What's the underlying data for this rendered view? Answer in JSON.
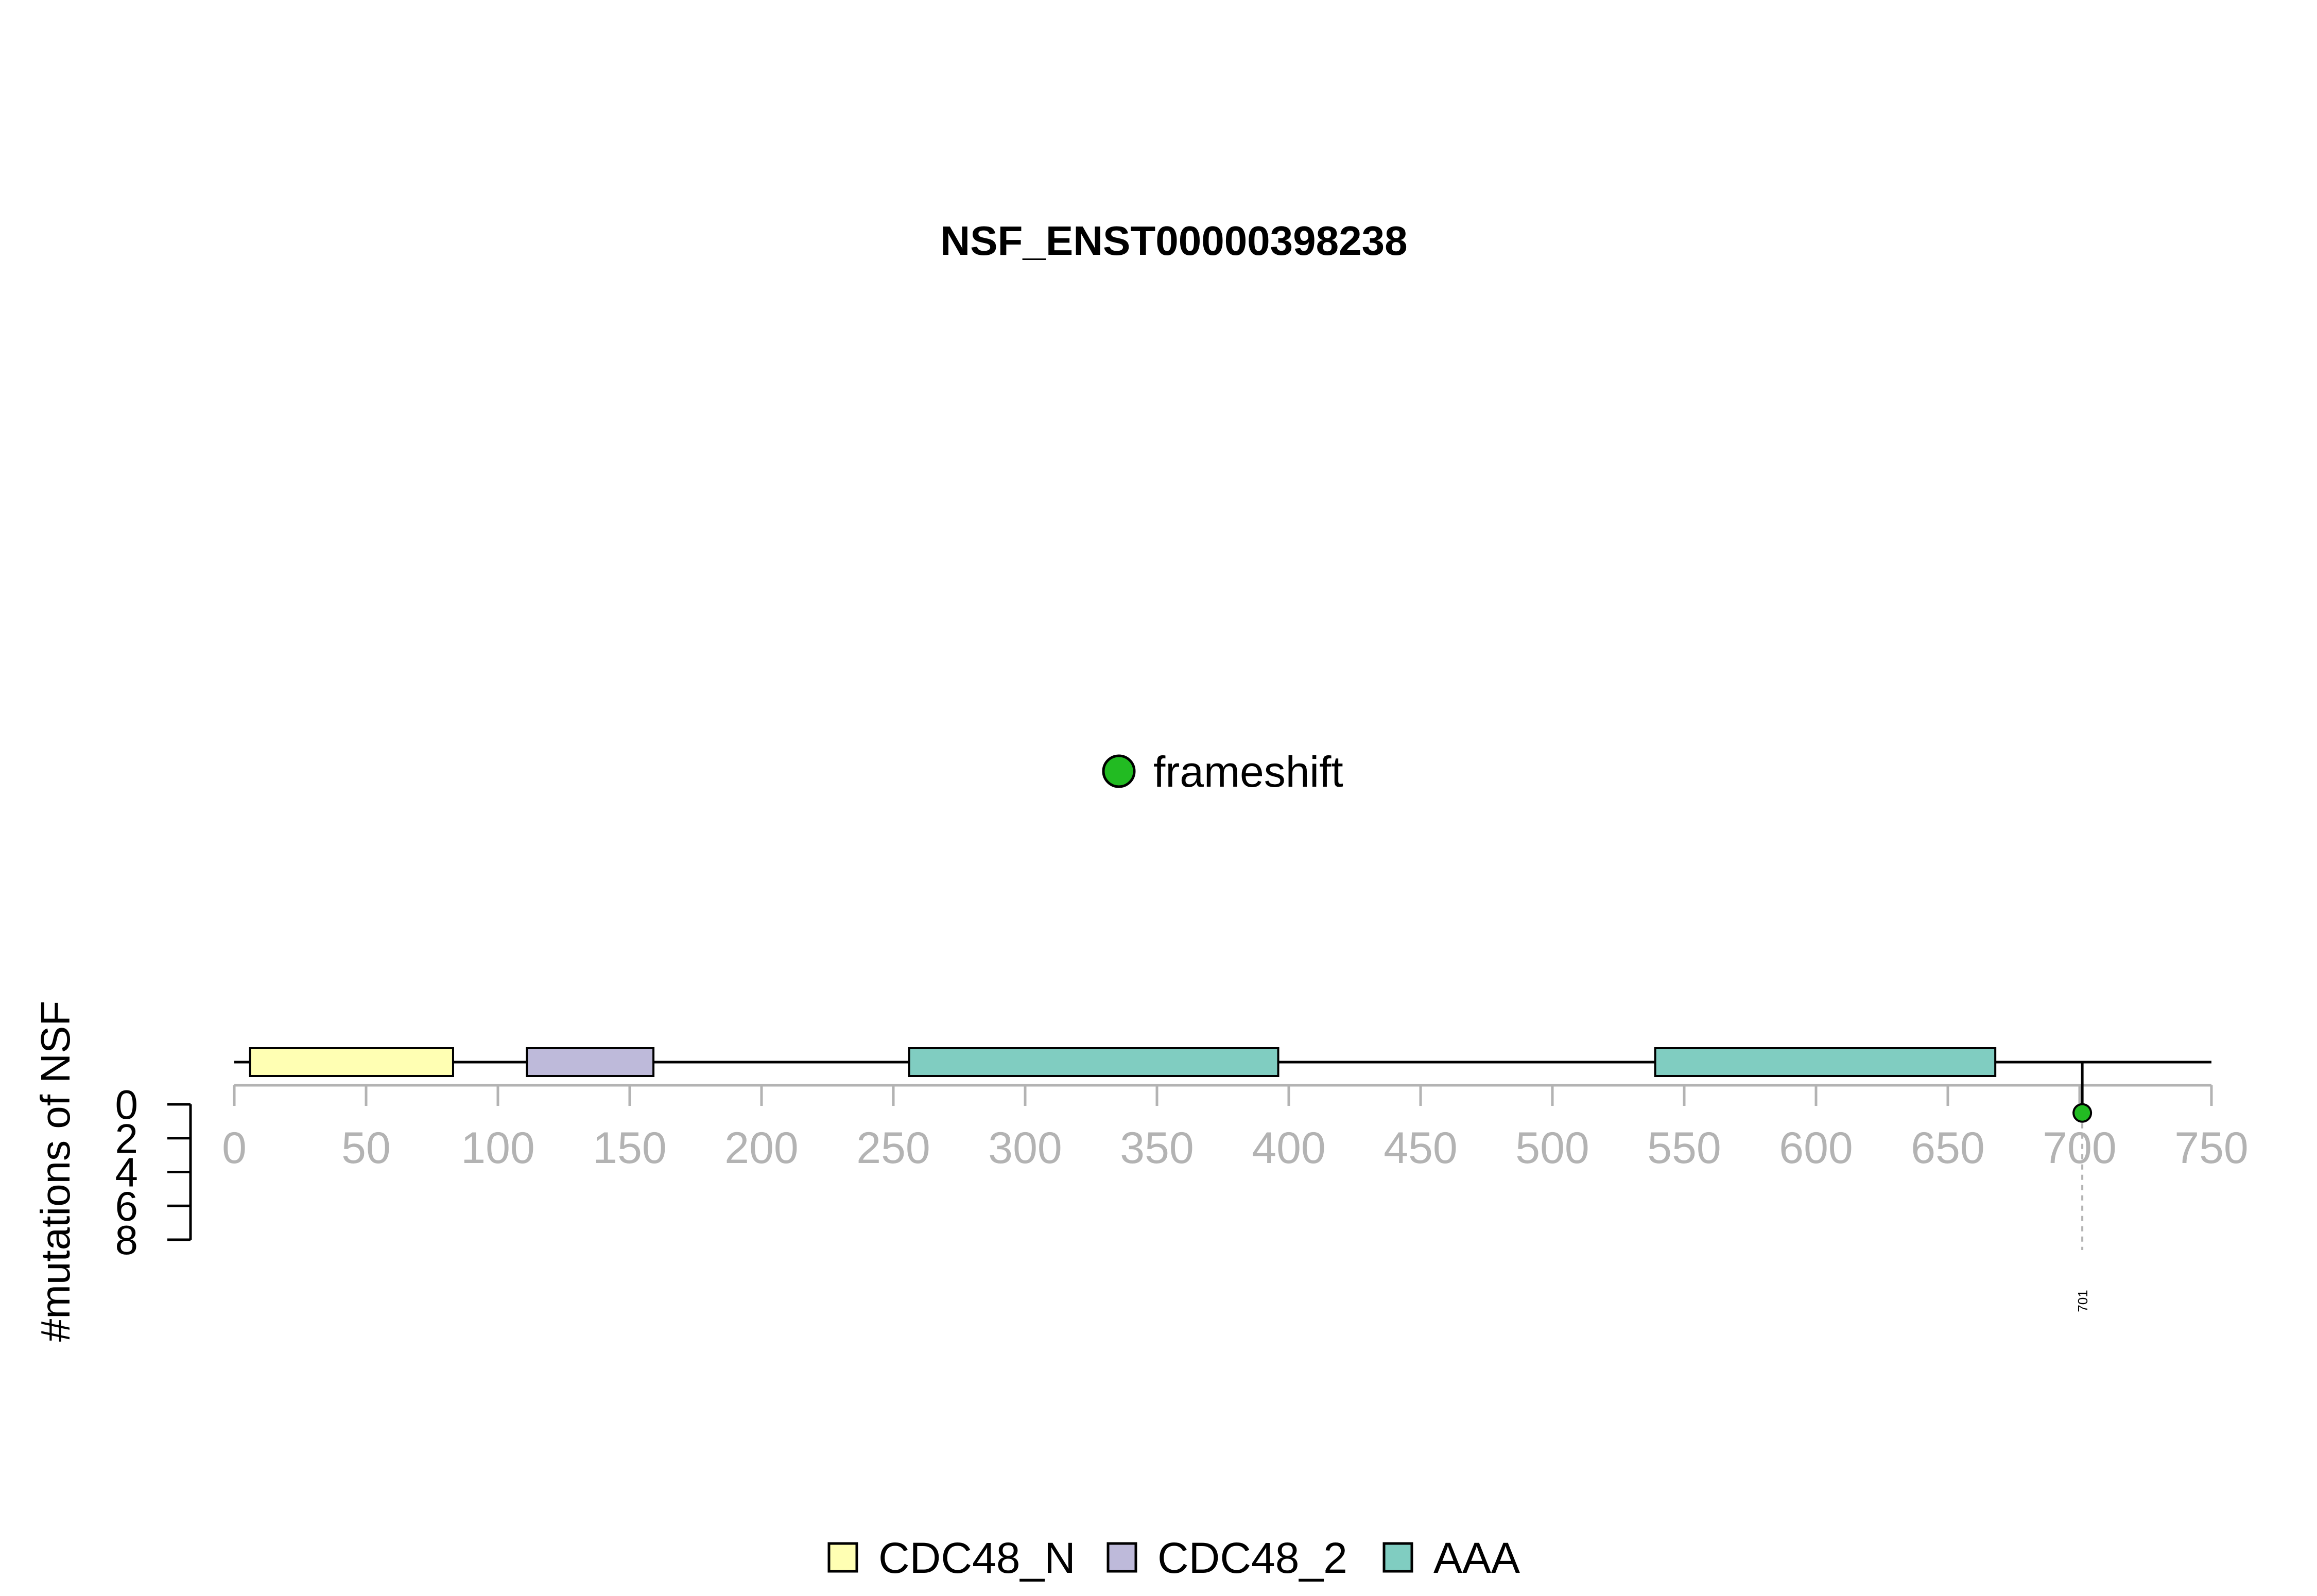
{
  "chart_data": {
    "type": "lollipop",
    "title": "NSF_ENST00000398238",
    "ylabel": "#mutations of NSF",
    "x_ticks": [
      0,
      50,
      100,
      150,
      200,
      250,
      300,
      350,
      400,
      450,
      500,
      550,
      600,
      650,
      700,
      750
    ],
    "x_tick_labels": [
      "0",
      "50",
      "100",
      "150",
      "200",
      "250",
      "300",
      "350",
      "400",
      "450",
      "500",
      "550",
      "600",
      "650",
      "700",
      "750"
    ],
    "xlim": [
      0,
      750
    ],
    "y_ticks": [
      0,
      2,
      4,
      6,
      8
    ],
    "y_tick_labels": [
      "0",
      "2",
      "4",
      "6",
      "8"
    ],
    "ylim": [
      0,
      8
    ],
    "protein_length": 750,
    "domains": [
      {
        "name": "CDC48_N",
        "start": 6,
        "end": 83,
        "color": "#ffffb3"
      },
      {
        "name": "CDC48_2",
        "start": 111,
        "end": 159,
        "color": "#bebada"
      },
      {
        "name": "AAA",
        "start": 256,
        "end": 396,
        "color": "#80cdc1"
      },
      {
        "name": "AAA",
        "start": 539,
        "end": 668,
        "color": "#80cdc1"
      }
    ],
    "mutations": [
      {
        "position": 701,
        "count": 1,
        "type": "frameshift",
        "label": "701",
        "color": "#22bb22"
      }
    ],
    "mutation_legend": [
      {
        "type": "frameshift",
        "color": "#22bb22"
      }
    ],
    "domain_legend": [
      {
        "name": "CDC48_N",
        "color": "#ffffb3"
      },
      {
        "name": "CDC48_2",
        "color": "#bebada"
      },
      {
        "name": "AAA",
        "color": "#80cdc1"
      }
    ]
  }
}
